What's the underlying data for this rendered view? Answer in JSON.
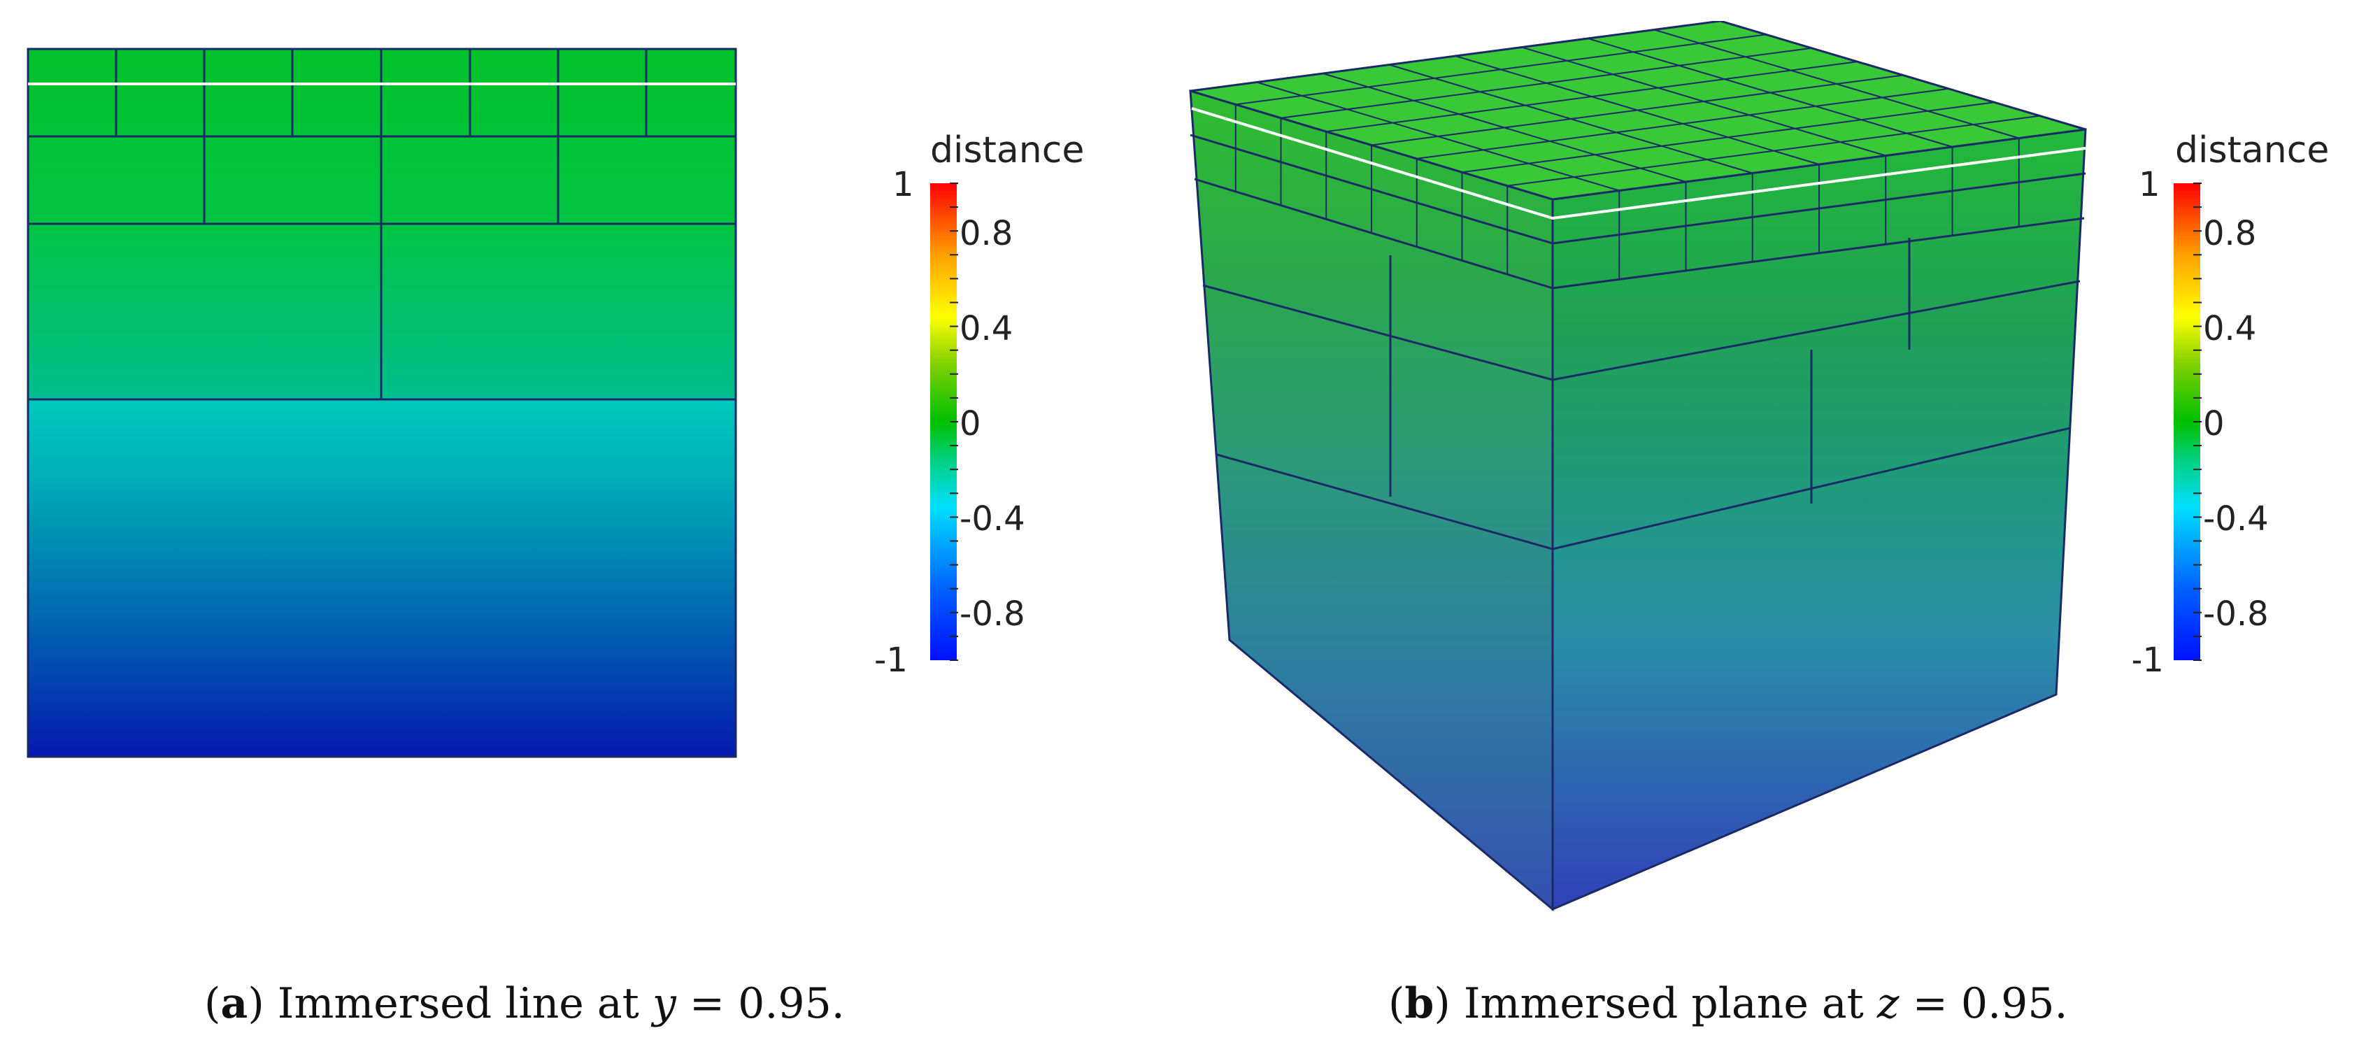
{
  "figure": {
    "panel_a": {
      "legend": {
        "title": "distance",
        "ticks": [
          "1",
          "0.8",
          "0.4",
          "0",
          "-0.4",
          "-0.8",
          "-1"
        ]
      },
      "caption": {
        "label": "a",
        "text_before": "Immersed line at",
        "variable": "y",
        "equals": "= 0.95."
      }
    },
    "panel_b": {
      "legend": {
        "title": "distance",
        "ticks": [
          "1",
          "0.8",
          "0.4",
          "0",
          "-0.4",
          "-0.8",
          "-1"
        ]
      },
      "caption": {
        "label": "b",
        "text_before": "Immersed plane at",
        "variable": "z",
        "equals": "= 0.95."
      }
    }
  },
  "colors": {
    "cmap": [
      "#0010ff",
      "#0060ff",
      "#00e0ff",
      "#00d080",
      "#00c000",
      "#80d000",
      "#ffff00",
      "#ffa000",
      "#ff0000"
    ],
    "mesh_line": "#1a2a66",
    "immersed_line": "#ffffff"
  }
}
